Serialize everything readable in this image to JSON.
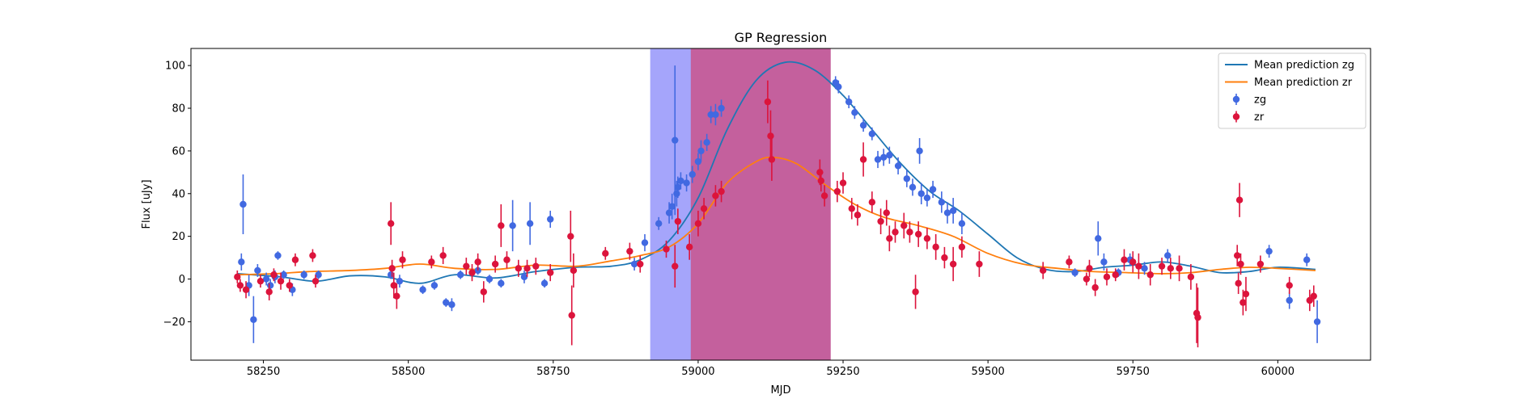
{
  "chart_data": {
    "type": "scatter",
    "title": "GP Regression",
    "xlabel": "MJD",
    "ylabel": "Flux [uJy]",
    "xlim": [
      58125,
      60160
    ],
    "ylim": [
      -38,
      108
    ],
    "xticks": [
      58250,
      58500,
      58750,
      59000,
      59250,
      59500,
      59750,
      60000
    ],
    "yticks": [
      -20,
      0,
      20,
      40,
      60,
      80,
      100
    ],
    "grid": false,
    "legend_position": "top-right",
    "shaded_regions": [
      {
        "x_start": 58918,
        "x_end": 58988,
        "color": "#a5a5fb"
      },
      {
        "x_start": 58988,
        "x_end": 59228,
        "color": "#c4609d"
      }
    ],
    "series": [
      {
        "name": "Mean prediction zg",
        "kind": "line",
        "color": "#1f77b4",
        "points": [
          [
            58205,
            2.5
          ],
          [
            58280,
            1.0
          ],
          [
            58340,
            -1.0
          ],
          [
            58400,
            1.5
          ],
          [
            58460,
            1.0
          ],
          [
            58520,
            -2.0
          ],
          [
            58580,
            2.0
          ],
          [
            58650,
            0.5
          ],
          [
            58720,
            3.5
          ],
          [
            58790,
            5.5
          ],
          [
            58850,
            6.0
          ],
          [
            58900,
            9.0
          ],
          [
            58950,
            18.0
          ],
          [
            59000,
            38.0
          ],
          [
            59050,
            70.0
          ],
          [
            59100,
            93.0
          ],
          [
            59150,
            101.5
          ],
          [
            59200,
            98.0
          ],
          [
            59250,
            86.0
          ],
          [
            59300,
            70.0
          ],
          [
            59350,
            54.0
          ],
          [
            59400,
            41.0
          ],
          [
            59450,
            32.0
          ],
          [
            59500,
            21.0
          ],
          [
            59550,
            10.0
          ],
          [
            59600,
            4.5
          ],
          [
            59650,
            3.5
          ],
          [
            59700,
            5.5
          ],
          [
            59750,
            6.5
          ],
          [
            59800,
            8.0
          ],
          [
            59850,
            6.0
          ],
          [
            59900,
            3.0
          ],
          [
            59950,
            3.5
          ],
          [
            60000,
            5.5
          ],
          [
            60065,
            4.5
          ]
        ]
      },
      {
        "name": "Mean prediction zr",
        "kind": "line",
        "color": "#ff7f0e",
        "points": [
          [
            58205,
            2.0
          ],
          [
            58270,
            2.5
          ],
          [
            58330,
            3.5
          ],
          [
            58400,
            4.0
          ],
          [
            58460,
            5.0
          ],
          [
            58520,
            7.0
          ],
          [
            58580,
            5.0
          ],
          [
            58650,
            4.5
          ],
          [
            58720,
            6.5
          ],
          [
            58790,
            6.0
          ],
          [
            58850,
            8.5
          ],
          [
            58900,
            11.0
          ],
          [
            58950,
            15.0
          ],
          [
            59000,
            26.0
          ],
          [
            59050,
            45.0
          ],
          [
            59100,
            55.0
          ],
          [
            59130,
            57.0
          ],
          [
            59170,
            54.0
          ],
          [
            59220,
            44.0
          ],
          [
            59270,
            35.0
          ],
          [
            59320,
            29.0
          ],
          [
            59380,
            25.0
          ],
          [
            59440,
            20.0
          ],
          [
            59500,
            12.0
          ],
          [
            59560,
            7.0
          ],
          [
            59620,
            5.0
          ],
          [
            59680,
            3.5
          ],
          [
            59740,
            3.0
          ],
          [
            59800,
            2.5
          ],
          [
            59850,
            3.0
          ],
          [
            59900,
            4.5
          ],
          [
            59950,
            5.5
          ],
          [
            60000,
            5.0
          ],
          [
            60065,
            4.0
          ]
        ]
      },
      {
        "name": "zg",
        "kind": "errorbar",
        "color": "#4169e1",
        "points": [
          [
            58215,
            35,
            14
          ],
          [
            58212,
            8,
            4
          ],
          [
            58225,
            -3,
            5
          ],
          [
            58233,
            -19,
            11
          ],
          [
            58240,
            4,
            3
          ],
          [
            58255,
            0,
            3
          ],
          [
            58262,
            -3,
            3
          ],
          [
            58270,
            1,
            3
          ],
          [
            58275,
            11,
            2
          ],
          [
            58285,
            2,
            2
          ],
          [
            58300,
            -5,
            3
          ],
          [
            58320,
            2,
            2
          ],
          [
            58345,
            2,
            2
          ],
          [
            58470,
            2,
            2
          ],
          [
            58485,
            -1,
            3
          ],
          [
            58525,
            -5,
            2
          ],
          [
            58545,
            -3,
            2
          ],
          [
            58565,
            -11,
            2
          ],
          [
            58575,
            -12,
            3
          ],
          [
            58590,
            2,
            2
          ],
          [
            58620,
            4,
            2
          ],
          [
            58640,
            0,
            2
          ],
          [
            58660,
            -2,
            2
          ],
          [
            58680,
            25,
            12
          ],
          [
            58700,
            1,
            3
          ],
          [
            58710,
            26,
            10
          ],
          [
            58735,
            -2,
            2
          ],
          [
            58745,
            28,
            4
          ],
          [
            58890,
            7,
            3
          ],
          [
            58908,
            17,
            4
          ],
          [
            58932,
            26,
            3
          ],
          [
            58950,
            31,
            5
          ],
          [
            58955,
            34,
            6
          ],
          [
            58960,
            65,
            35
          ],
          [
            58963,
            40,
            6
          ],
          [
            58965,
            43,
            5
          ],
          [
            58970,
            46,
            4
          ],
          [
            58980,
            45,
            4
          ],
          [
            58990,
            49,
            4
          ],
          [
            59000,
            55,
            4
          ],
          [
            59005,
            60,
            5
          ],
          [
            59015,
            64,
            4
          ],
          [
            59022,
            77,
            4
          ],
          [
            59030,
            77,
            5
          ],
          [
            59040,
            80,
            4
          ],
          [
            59237,
            92,
            3
          ],
          [
            59242,
            90,
            3
          ],
          [
            59260,
            83,
            3
          ],
          [
            59270,
            78,
            3
          ],
          [
            59285,
            72,
            3
          ],
          [
            59300,
            68,
            3
          ],
          [
            59310,
            56,
            4
          ],
          [
            59320,
            57,
            4
          ],
          [
            59330,
            58,
            4
          ],
          [
            59345,
            53,
            4
          ],
          [
            59360,
            47,
            4
          ],
          [
            59370,
            43,
            4
          ],
          [
            59382,
            60,
            6
          ],
          [
            59385,
            40,
            5
          ],
          [
            59395,
            38,
            4
          ],
          [
            59405,
            42,
            4
          ],
          [
            59420,
            36,
            5
          ],
          [
            59430,
            31,
            5
          ],
          [
            59440,
            32,
            6
          ],
          [
            59455,
            26,
            5
          ],
          [
            59650,
            3,
            2
          ],
          [
            59690,
            19,
            8
          ],
          [
            59700,
            8,
            4
          ],
          [
            59725,
            3,
            2
          ],
          [
            59745,
            9,
            3
          ],
          [
            59770,
            5,
            3
          ],
          [
            59810,
            11,
            3
          ],
          [
            59985,
            13,
            3
          ],
          [
            60020,
            -10,
            4
          ],
          [
            60050,
            9,
            3
          ],
          [
            60068,
            -20,
            10
          ]
        ]
      },
      {
        "name": "zr",
        "kind": "errorbar",
        "color": "#dc143c",
        "points": [
          [
            58205,
            1,
            3
          ],
          [
            58210,
            -3,
            3
          ],
          [
            58220,
            -5,
            4
          ],
          [
            58245,
            -1,
            3
          ],
          [
            58260,
            -6,
            4
          ],
          [
            58268,
            2,
            3
          ],
          [
            58280,
            -1,
            4
          ],
          [
            58295,
            -3,
            3
          ],
          [
            58305,
            9,
            3
          ],
          [
            58335,
            11,
            3
          ],
          [
            58340,
            -1,
            3
          ],
          [
            58470,
            26,
            10
          ],
          [
            58472,
            5,
            4
          ],
          [
            58475,
            -3,
            6
          ],
          [
            58480,
            -8,
            6
          ],
          [
            58490,
            9,
            4
          ],
          [
            58540,
            8,
            3
          ],
          [
            58560,
            11,
            4
          ],
          [
            58600,
            6,
            4
          ],
          [
            58610,
            3,
            4
          ],
          [
            58620,
            8,
            4
          ],
          [
            58630,
            -6,
            5
          ],
          [
            58650,
            7,
            4
          ],
          [
            58660,
            25,
            10
          ],
          [
            58670,
            9,
            4
          ],
          [
            58690,
            5,
            4
          ],
          [
            58705,
            5,
            4
          ],
          [
            58720,
            6,
            4
          ],
          [
            58745,
            3,
            4
          ],
          [
            58780,
            20,
            12
          ],
          [
            58782,
            -17,
            14
          ],
          [
            58785,
            4,
            8
          ],
          [
            58840,
            12,
            3
          ],
          [
            58882,
            13,
            4
          ],
          [
            58900,
            7,
            4
          ],
          [
            58945,
            14,
            4
          ],
          [
            58960,
            6,
            10
          ],
          [
            58965,
            27,
            6
          ],
          [
            58985,
            15,
            6
          ],
          [
            59000,
            26,
            6
          ],
          [
            59010,
            33,
            5
          ],
          [
            59030,
            39,
            5
          ],
          [
            59040,
            41,
            5
          ],
          [
            59120,
            83,
            10
          ],
          [
            59125,
            67,
            12
          ],
          [
            59127,
            56,
            10
          ],
          [
            59210,
            50,
            6
          ],
          [
            59212,
            46,
            5
          ],
          [
            59218,
            39,
            5
          ],
          [
            59240,
            41,
            5
          ],
          [
            59250,
            45,
            5
          ],
          [
            59265,
            33,
            5
          ],
          [
            59275,
            30,
            5
          ],
          [
            59285,
            56,
            8
          ],
          [
            59300,
            36,
            5
          ],
          [
            59315,
            27,
            6
          ],
          [
            59325,
            31,
            6
          ],
          [
            59330,
            19,
            6
          ],
          [
            59340,
            22,
            5
          ],
          [
            59355,
            25,
            6
          ],
          [
            59365,
            22,
            5
          ],
          [
            59375,
            -6,
            8
          ],
          [
            59380,
            21,
            6
          ],
          [
            59395,
            19,
            5
          ],
          [
            59410,
            15,
            6
          ],
          [
            59425,
            10,
            5
          ],
          [
            59440,
            7,
            8
          ],
          [
            59455,
            15,
            5
          ],
          [
            59485,
            7,
            6
          ],
          [
            59595,
            4,
            4
          ],
          [
            59640,
            8,
            3
          ],
          [
            59670,
            0,
            3
          ],
          [
            59675,
            5,
            4
          ],
          [
            59685,
            -4,
            4
          ],
          [
            59705,
            1,
            4
          ],
          [
            59720,
            2,
            3
          ],
          [
            59735,
            9,
            5
          ],
          [
            59750,
            8,
            5
          ],
          [
            59760,
            6,
            6
          ],
          [
            59780,
            2,
            5
          ],
          [
            59800,
            6,
            4
          ],
          [
            59815,
            5,
            5
          ],
          [
            59830,
            5,
            6
          ],
          [
            59850,
            1,
            6
          ],
          [
            59860,
            -16,
            14
          ],
          [
            59862,
            -18,
            14
          ],
          [
            59930,
            11,
            5
          ],
          [
            59932,
            -2,
            5
          ],
          [
            59934,
            37,
            8
          ],
          [
            59936,
            7,
            5
          ],
          [
            59940,
            -11,
            6
          ],
          [
            59945,
            -7,
            8
          ],
          [
            59970,
            7,
            4
          ],
          [
            60020,
            -3,
            4
          ],
          [
            60055,
            -10,
            5
          ],
          [
            60062,
            -8,
            5
          ]
        ]
      }
    ]
  }
}
